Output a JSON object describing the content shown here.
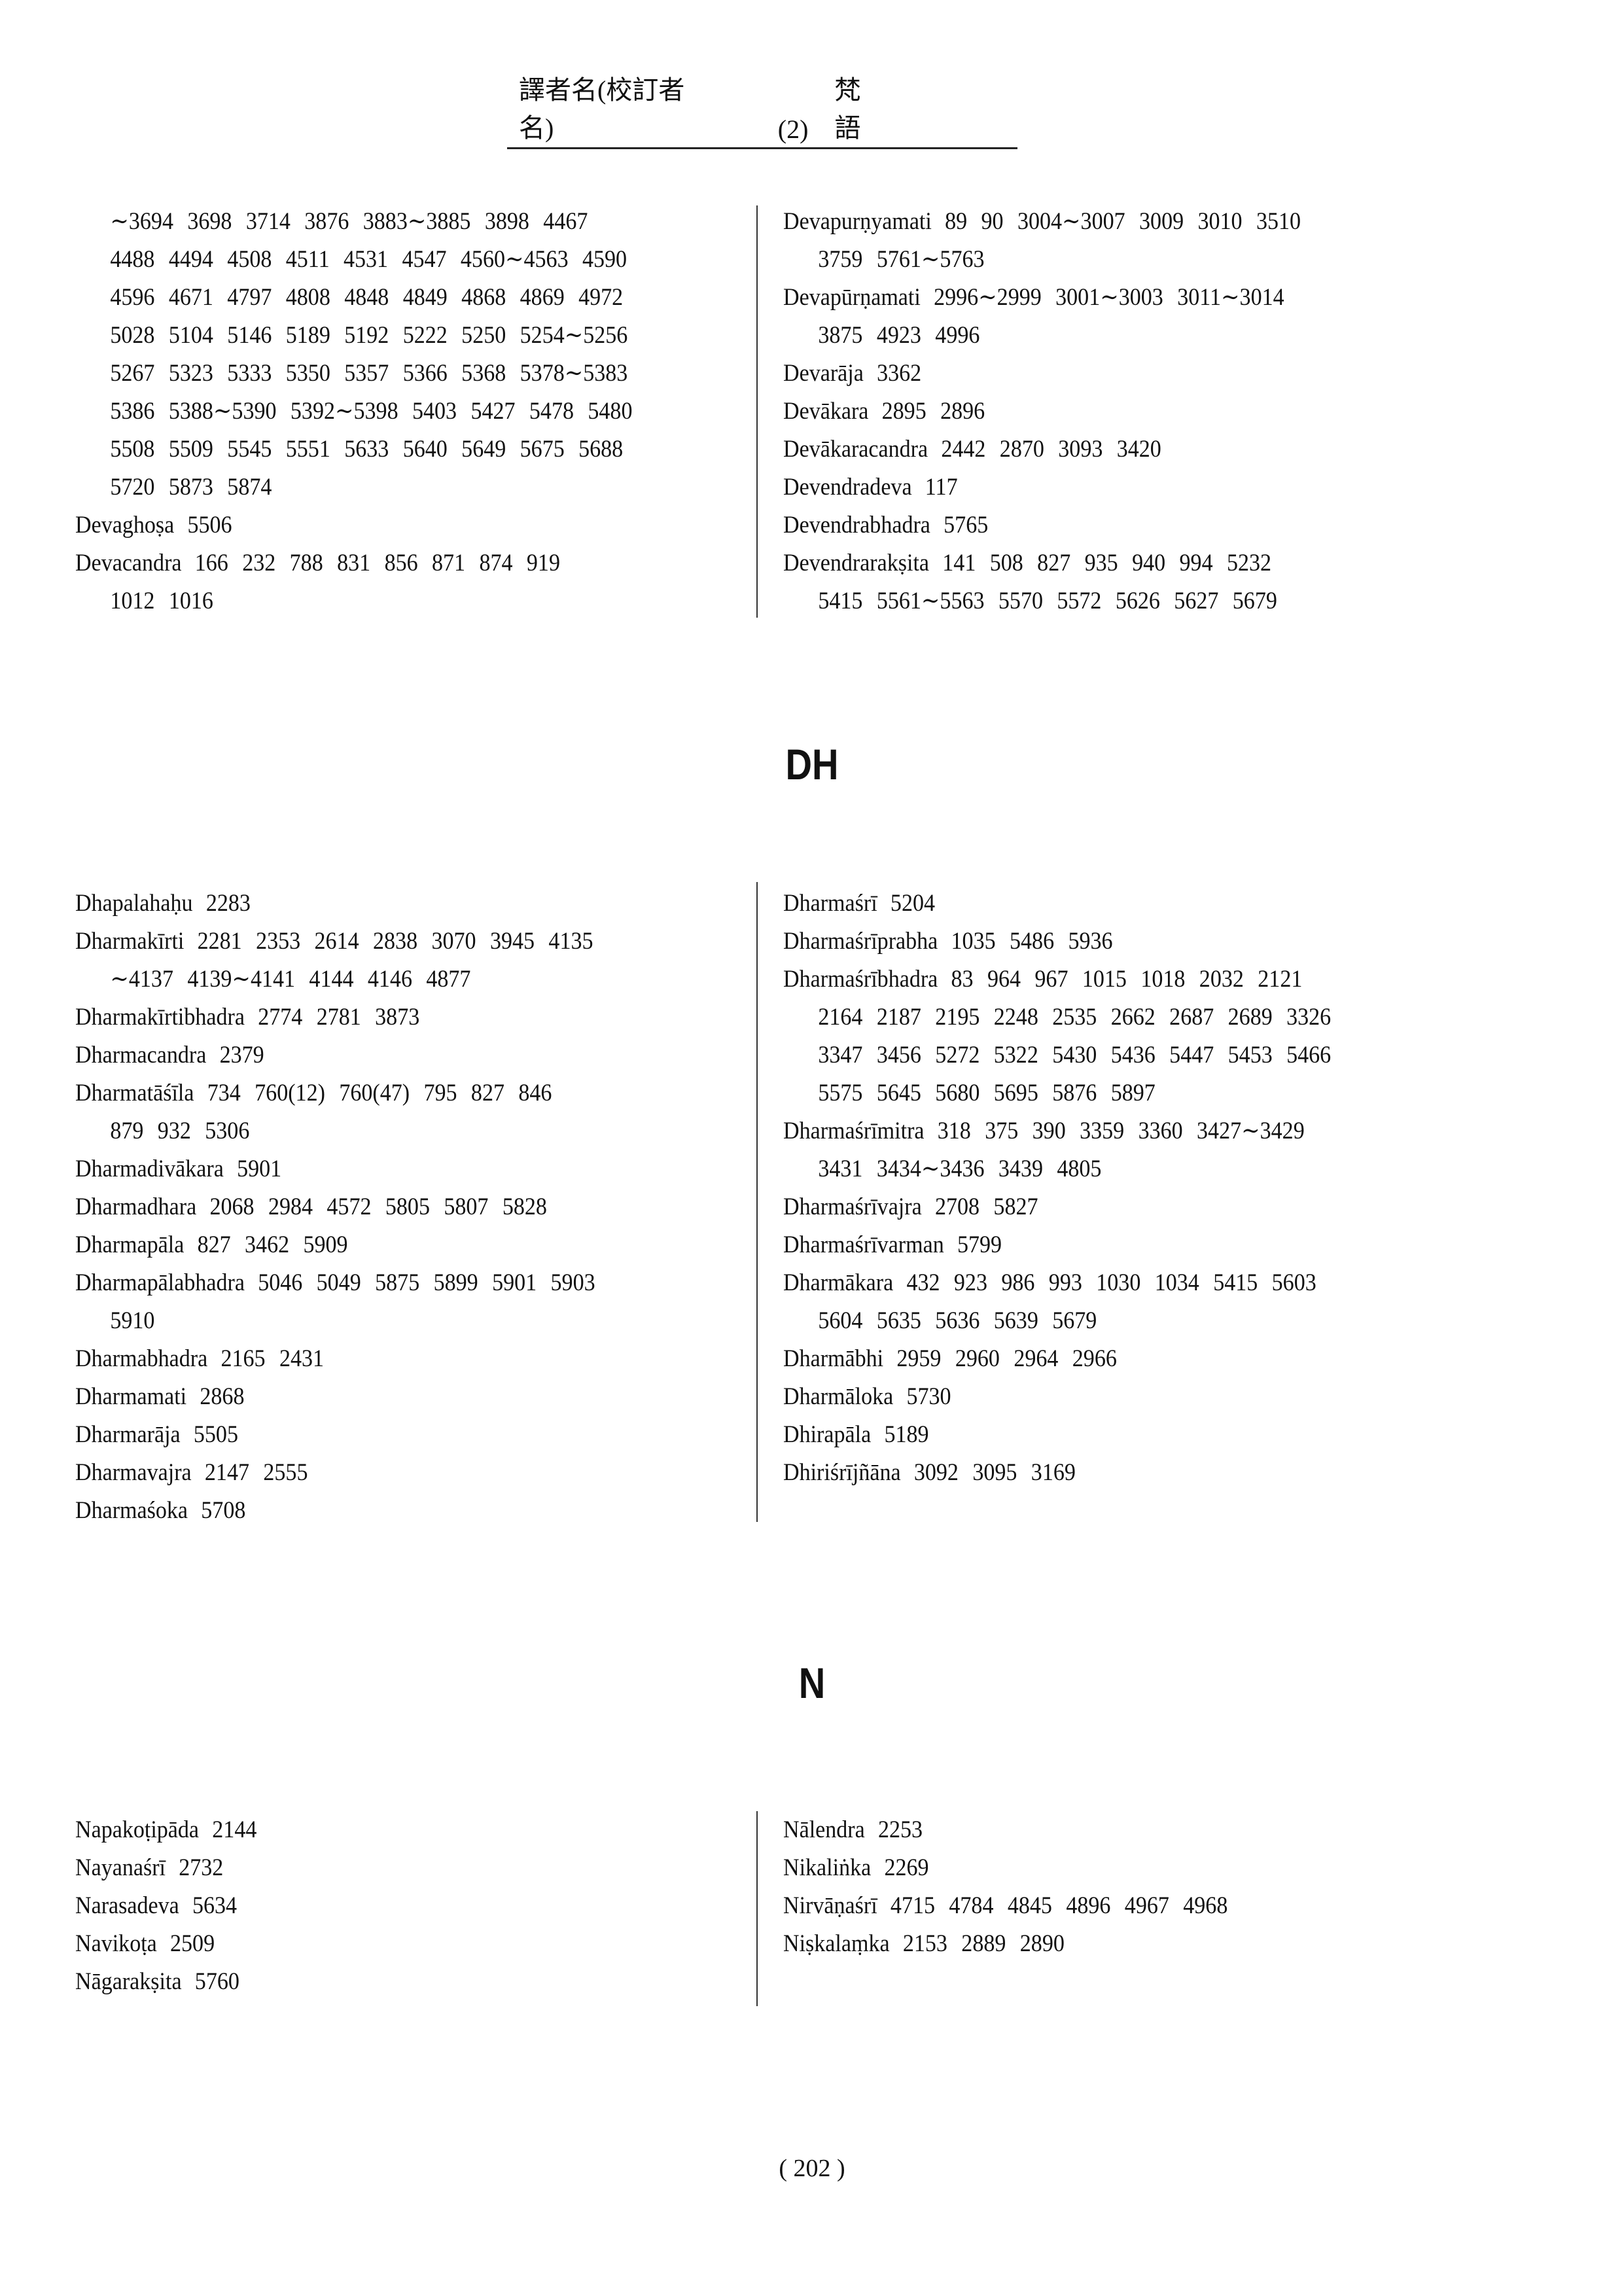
{
  "header": {
    "title": "譯者名(校訂者名)",
    "section": "(2)",
    "language": "梵語"
  },
  "sections": [
    {
      "heading": "",
      "left": [
        {
          "name": "",
          "lines": [
            "",
            "∼3694 3698 3714 3876 3883∼3885 3898 4467",
            "4488 4494 4508 4511 4531 4547 4560∼4563 4590",
            "4596 4671 4797 4808 4848 4849 4868 4869 4972",
            "5028 5104 5146 5189 5192 5222 5250 5254∼5256",
            "5267 5323 5333 5350 5357 5366 5368 5378∼5383",
            "5386 5388∼5390 5392∼5398 5403 5427 5478 5480",
            "5508 5509 5545 5551 5633 5640 5649 5675 5688",
            "5720 5873 5874"
          ]
        },
        {
          "name": "Devaghoṣa",
          "lines": [
            "5506"
          ]
        },
        {
          "name": "Devacandra",
          "lines": [
            "166 232 788 831 856 871 874 919",
            "1012 1016"
          ]
        }
      ],
      "right": [
        {
          "name": "Devapurṇyamati",
          "lines": [
            "89 90 3004∼3007 3009 3010 3510",
            "3759 5761∼5763"
          ]
        },
        {
          "name": "Devapūrṇamati",
          "lines": [
            "2996∼2999 3001∼3003 3011∼3014",
            "3875 4923 4996"
          ]
        },
        {
          "name": "Devarāja",
          "lines": [
            "3362"
          ]
        },
        {
          "name": "Devākara",
          "lines": [
            "2895 2896"
          ]
        },
        {
          "name": "Devākaracandra",
          "lines": [
            "2442 2870 3093 3420"
          ]
        },
        {
          "name": "Devendradeva",
          "lines": [
            "117"
          ]
        },
        {
          "name": "Devendrabhadra",
          "lines": [
            "5765"
          ]
        },
        {
          "name": "Devendrarakṣita",
          "lines": [
            "141 508 827 935 940 994 5232",
            "5415 5561∼5563 5570 5572 5626 5627 5679"
          ]
        }
      ]
    },
    {
      "heading": "DH",
      "left": [
        {
          "name": "Dhapalahaḥu",
          "lines": [
            "2283"
          ]
        },
        {
          "name": "Dharmakīrti",
          "lines": [
            "2281 2353 2614 2838 3070 3945 4135",
            "∼4137 4139∼4141 4144 4146 4877"
          ]
        },
        {
          "name": "Dharmakīrtibhadra",
          "lines": [
            "2774 2781 3873"
          ]
        },
        {
          "name": "Dharmacandra",
          "lines": [
            "2379"
          ]
        },
        {
          "name": "Dharmatāśīla",
          "lines": [
            "734 760(12) 760(47) 795 827 846",
            "879 932 5306"
          ]
        },
        {
          "name": "Dharmadivākara",
          "lines": [
            "5901"
          ]
        },
        {
          "name": "Dharmadhara",
          "lines": [
            "2068 2984 4572 5805 5807 5828"
          ]
        },
        {
          "name": "Dharmapāla",
          "lines": [
            "827 3462 5909"
          ]
        },
        {
          "name": "Dharmapālabhadra",
          "lines": [
            "5046 5049 5875 5899 5901 5903",
            "5910"
          ]
        },
        {
          "name": "Dharmabhadra",
          "lines": [
            "2165 2431"
          ]
        },
        {
          "name": "Dharmamati",
          "lines": [
            "2868"
          ]
        },
        {
          "name": "Dharmarāja",
          "lines": [
            "5505"
          ]
        },
        {
          "name": "Dharmavajra",
          "lines": [
            "2147 2555"
          ]
        },
        {
          "name": "Dharmaśoka",
          "lines": [
            "5708"
          ]
        }
      ],
      "right": [
        {
          "name": "Dharmaśrī",
          "lines": [
            "5204"
          ]
        },
        {
          "name": "Dharmaśrīprabha",
          "lines": [
            "1035 5486 5936"
          ]
        },
        {
          "name": "Dharmaśrībhadra",
          "lines": [
            "83 964 967 1015 1018 2032 2121",
            "2164 2187 2195 2248 2535 2662 2687 2689 3326",
            "3347 3456 5272 5322 5430 5436 5447 5453 5466",
            "5575 5645 5680 5695 5876 5897"
          ]
        },
        {
          "name": "Dharmaśrīmitra",
          "lines": [
            "318 375 390 3359 3360 3427∼3429",
            "3431 3434∼3436 3439 4805"
          ]
        },
        {
          "name": "Dharmaśrīvajra",
          "lines": [
            "2708 5827"
          ]
        },
        {
          "name": "Dharmaśrīvarman",
          "lines": [
            "5799"
          ]
        },
        {
          "name": "Dharmākara",
          "lines": [
            "432 923 986 993 1030 1034 5415 5603",
            "5604 5635 5636 5639 5679"
          ]
        },
        {
          "name": "Dharmābhi",
          "lines": [
            "2959 2960 2964 2966"
          ]
        },
        {
          "name": "Dharmāloka",
          "lines": [
            "5730"
          ]
        },
        {
          "name": "Dhirapāla",
          "lines": [
            "5189"
          ]
        },
        {
          "name": "Dhiriśrījñāna",
          "lines": [
            "3092 3095 3169"
          ]
        }
      ]
    },
    {
      "heading": "N",
      "left": [
        {
          "name": "Napakoṭipāda",
          "lines": [
            "2144"
          ]
        },
        {
          "name": "Nayanaśrī",
          "lines": [
            "2732"
          ]
        },
        {
          "name": "Narasadeva",
          "lines": [
            "5634"
          ]
        },
        {
          "name": "Navikoṭa",
          "lines": [
            "2509"
          ]
        },
        {
          "name": "Nāgarakṣita",
          "lines": [
            "5760"
          ]
        }
      ],
      "right": [
        {
          "name": "Nālendra",
          "lines": [
            "2253"
          ]
        },
        {
          "name": "Nikaliṅka",
          "lines": [
            "2269"
          ]
        },
        {
          "name": "Nirvāṇaśrī",
          "lines": [
            "4715 4784 4845 4896 4967 4968"
          ]
        },
        {
          "name": "Niṣkalaṃka",
          "lines": [
            "2153 2889 2890"
          ]
        }
      ]
    }
  ],
  "footer": {
    "page_number": "( 202 )"
  }
}
